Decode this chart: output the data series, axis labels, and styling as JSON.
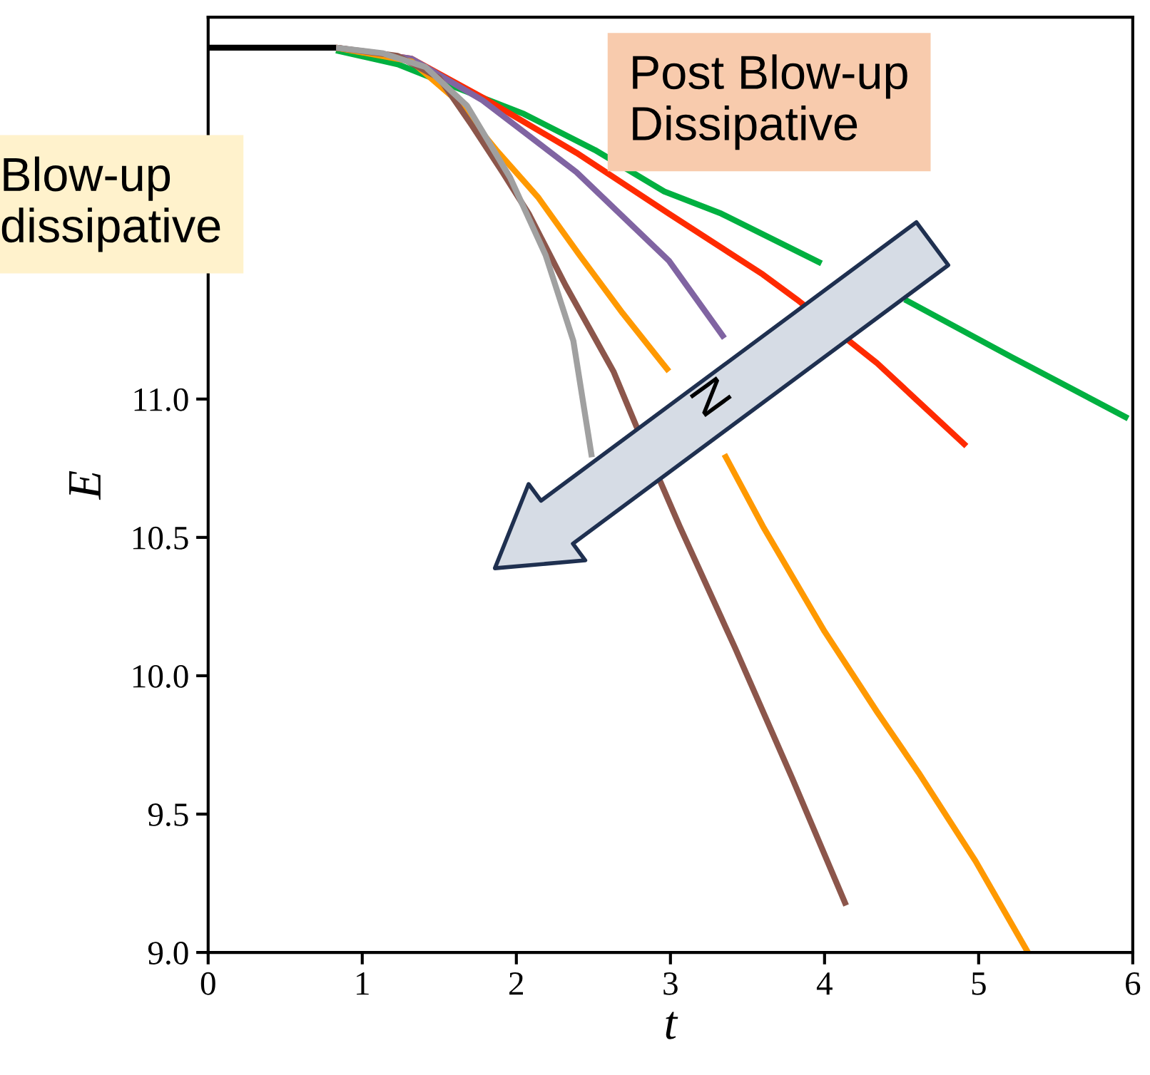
{
  "chart_data": {
    "type": "line",
    "xlabel": "t",
    "ylabel": "E",
    "xlim": [
      0,
      6
    ],
    "xticks": [
      0,
      1,
      2,
      3,
      4,
      5,
      6
    ],
    "ylim": [
      9.0,
      12.38
    ],
    "yticks": [
      {
        "value": 9.0,
        "label": "9.0"
      },
      {
        "value": 9.5,
        "label": "9.5"
      },
      {
        "value": 10.0,
        "label": "10.0"
      },
      {
        "value": 10.5,
        "label": "10.5"
      },
      {
        "value": 11.0,
        "label": "11.0"
      }
    ],
    "grid": false,
    "legend": false,
    "marker": "none",
    "line_style": "solid",
    "annotations": [
      "Post Blow-up\nDissipative",
      "Blow-up\ndissipative",
      "N"
    ],
    "series": [
      {
        "color": "#00b040",
        "x": [
          0.83,
          1.23,
          1.59,
          2.05,
          2.51,
          2.96,
          3.33,
          3.98,
          4.15,
          4.52,
          5.22,
          5.97
        ],
        "values": [
          12.26,
          12.21,
          12.13,
          12.03,
          11.9,
          11.75,
          11.67,
          11.49,
          null,
          11.36,
          11.15,
          10.93
        ]
      },
      {
        "color": "#ff2a00",
        "x": [
          0.83,
          1.32,
          1.78,
          2.39,
          2.99,
          3.6,
          3.82,
          4.34,
          4.92
        ],
        "values": [
          12.27,
          12.23,
          12.09,
          11.89,
          11.67,
          11.45,
          11.36,
          11.13,
          10.83
        ]
      },
      {
        "color": "#8064a2",
        "x": [
          0.83,
          1.32,
          1.78,
          2.39,
          2.99,
          3.35
        ],
        "values": [
          12.27,
          12.23,
          12.08,
          11.82,
          11.5,
          11.22
        ]
      },
      {
        "color": "#ff9900",
        "x": [
          0.83,
          1.32,
          1.59,
          1.87,
          2.14,
          2.41,
          2.69,
          2.99,
          3.24,
          3.35,
          3.6,
          4.0,
          4.34,
          4.61,
          4.98,
          5.32
        ],
        "values": [
          12.27,
          12.22,
          12.09,
          11.9,
          11.73,
          11.52,
          11.31,
          11.1,
          null,
          10.8,
          10.54,
          10.16,
          9.87,
          9.65,
          9.33,
          9.0
        ]
      },
      {
        "color": "#8c564b",
        "x": [
          0.83,
          1.23,
          1.5,
          1.71,
          1.91,
          2.08,
          2.32,
          2.63,
          2.78,
          3.06,
          3.42,
          3.79,
          4.14
        ],
        "values": [
          12.27,
          12.24,
          12.16,
          11.99,
          11.82,
          11.67,
          11.41,
          11.1,
          10.9,
          10.54,
          10.1,
          9.63,
          9.17
        ]
      },
      {
        "color": "#a0a0a0",
        "x": [
          0.83,
          1.13,
          1.41,
          1.68,
          1.96,
          2.19,
          2.37,
          2.49
        ],
        "values": [
          12.27,
          12.25,
          12.2,
          12.06,
          11.8,
          11.52,
          11.21,
          10.79
        ]
      },
      {
        "color": "#000000",
        "x": [
          0,
          0.83
        ],
        "values": [
          12.27,
          12.27
        ]
      }
    ]
  }
}
